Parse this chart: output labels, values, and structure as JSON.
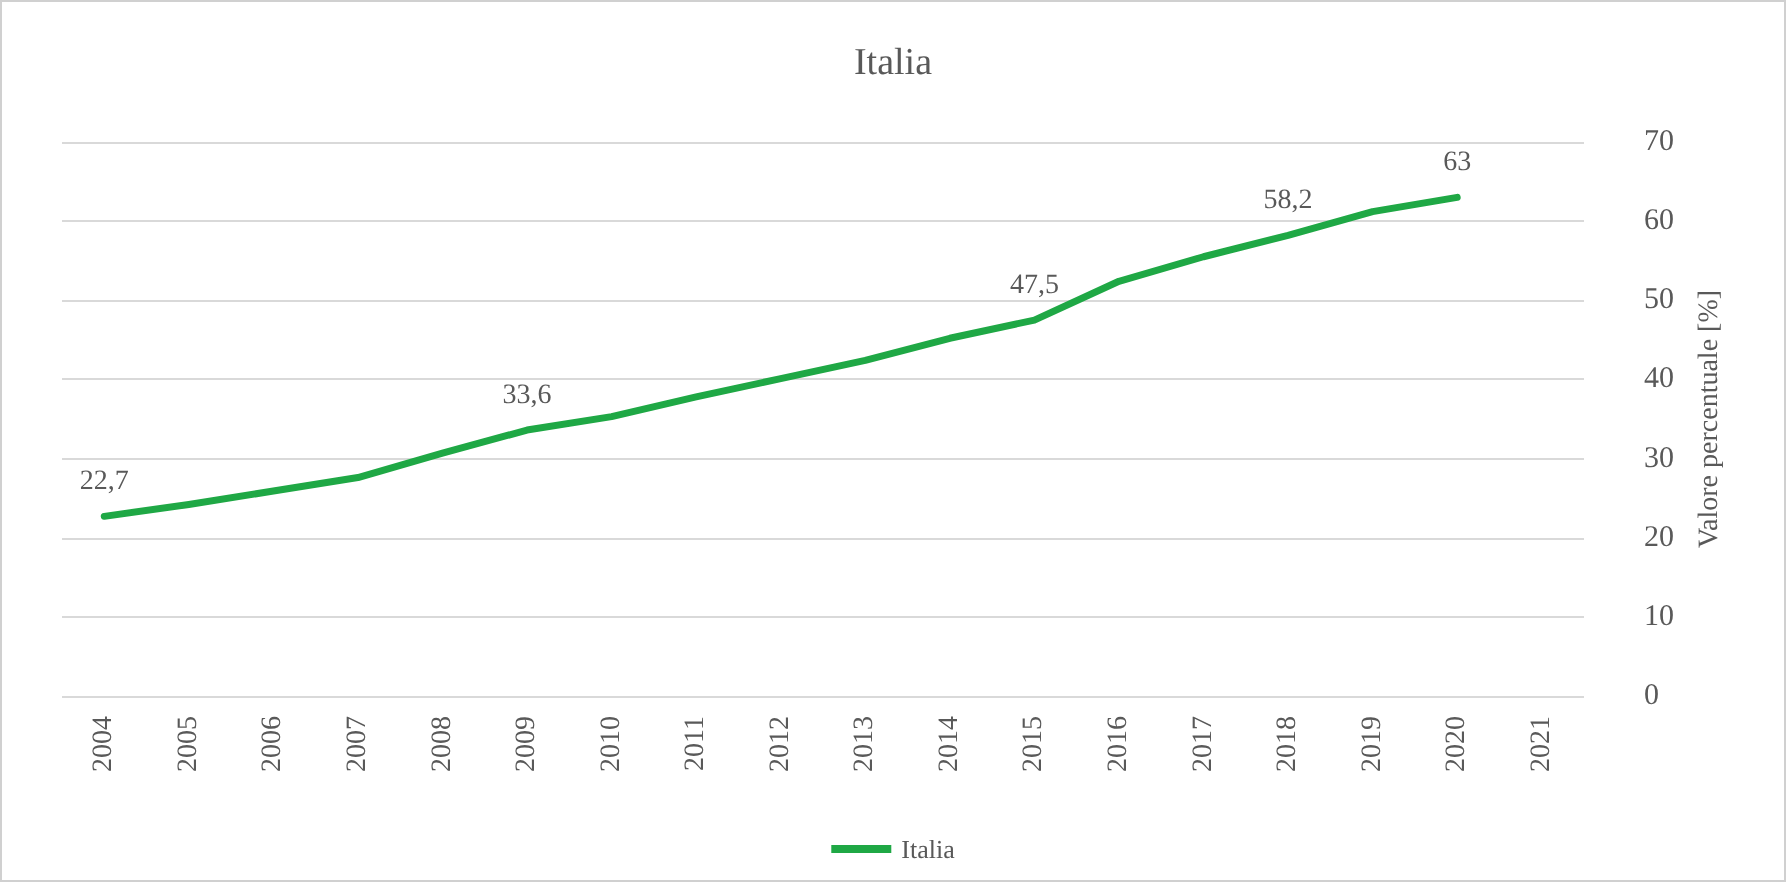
{
  "chart_data": {
    "type": "line",
    "title": "Italia",
    "ylabel": "Valore percentuale [%]",
    "categories": [
      "2004",
      "2005",
      "2006",
      "2007",
      "2008",
      "2009",
      "2010",
      "2011",
      "2012",
      "2013",
      "2014",
      "2015",
      "2016",
      "2017",
      "2018",
      "2019",
      "2020",
      "2021"
    ],
    "series": [
      {
        "name": "Italia",
        "color": "#1fa845",
        "values": [
          22.7,
          24.2,
          25.9,
          27.6,
          30.7,
          33.6,
          35.3,
          37.8,
          40.1,
          42.4,
          45.2,
          47.5,
          52.4,
          55.5,
          58.2,
          61.2,
          63,
          null
        ],
        "value_labels": [
          "22,7",
          null,
          null,
          null,
          null,
          "33,6",
          null,
          null,
          null,
          null,
          null,
          "47,5",
          null,
          null,
          "58,2",
          null,
          "63",
          null
        ]
      }
    ],
    "ylim": [
      0,
      70
    ],
    "yticks": [
      0,
      10,
      20,
      30,
      40,
      50,
      60,
      70
    ],
    "grid": "y",
    "legend": "bottom",
    "marker": "none",
    "line_style": "solid"
  }
}
